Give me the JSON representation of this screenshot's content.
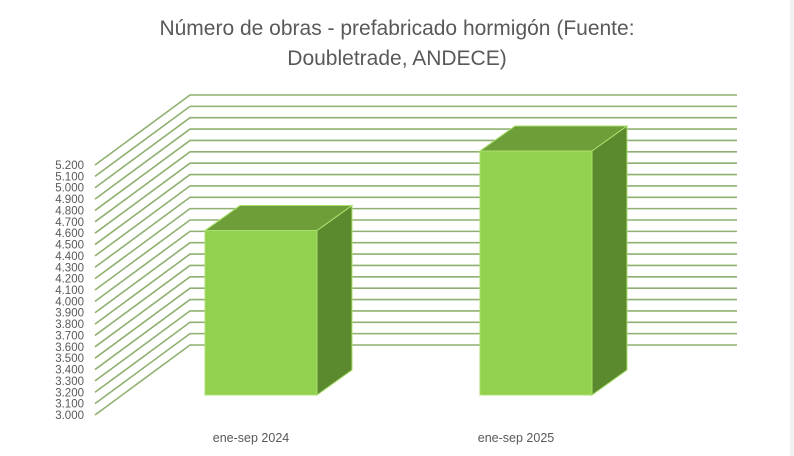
{
  "chart_data": {
    "type": "bar",
    "title": "Número de obras - prefabricado hormigón (Fuente: Doubletrade, ANDECE)",
    "title_lines": [
      "Número de obras - prefabricado hormigón (Fuente:",
      "Doubletrade, ANDECE)"
    ],
    "categories": [
      "ene-sep 2024",
      "ene-sep 2025"
    ],
    "series": [
      {
        "name": "Número de obras",
        "values": [
          4500,
          5200
        ]
      }
    ],
    "xlabel": "",
    "ylabel": "",
    "ylim": [
      3000,
      5200
    ],
    "y_tick_step": 100,
    "y_ticks": [
      "3.000",
      "3.100",
      "3.200",
      "3.300",
      "3.400",
      "3.500",
      "3.600",
      "3.700",
      "3.800",
      "3.900",
      "4.000",
      "4.100",
      "4.200",
      "4.300",
      "4.400",
      "4.500",
      "4.600",
      "4.700",
      "4.800",
      "4.900",
      "5.000",
      "5.100",
      "5.200"
    ],
    "grid": true,
    "style": "3d-column",
    "legend": "none",
    "colors": {
      "bar_front": "#92d050",
      "bar_top": "#6e9e3a",
      "bar_side": "#5b8a2e",
      "bar_edge": "#a9e06b",
      "gridline": "#8fb070",
      "text": "#595959"
    }
  }
}
